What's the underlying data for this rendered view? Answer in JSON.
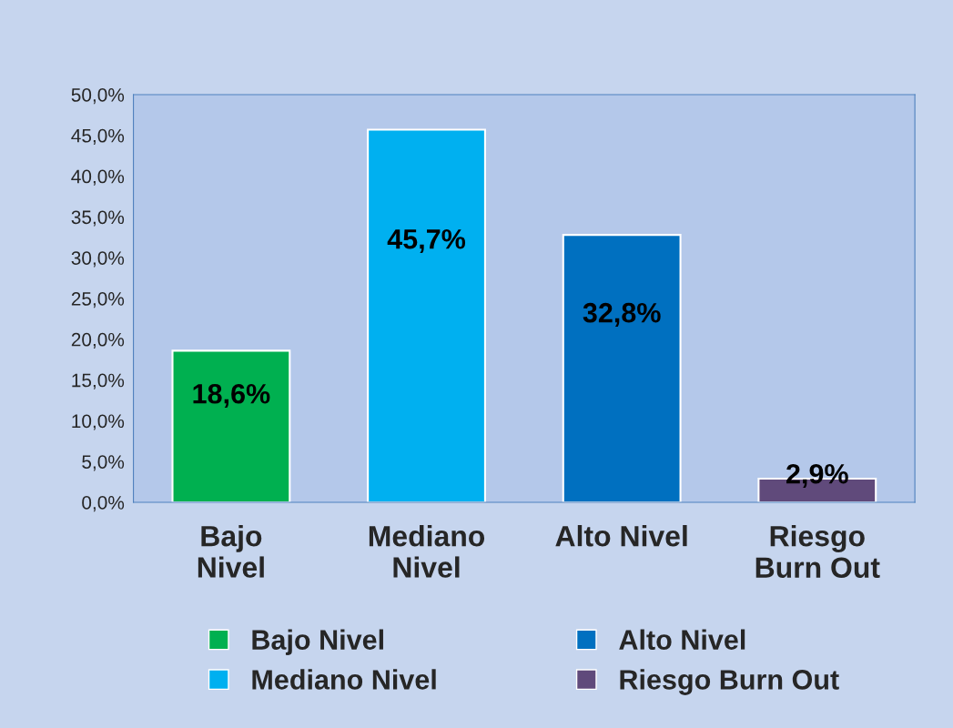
{
  "chart_data": {
    "type": "bar",
    "categories": [
      "Bajo\nNivel",
      "Mediano\nNivel",
      "Alto Nivel",
      "Riesgo\nBurn Out"
    ],
    "series": [
      {
        "name": "Bajo Nivel",
        "color": "#00b050",
        "values": [
          18.6,
          null,
          null,
          null
        ],
        "value_labels": [
          "18,6%",
          null,
          null,
          null
        ]
      },
      {
        "name": "Mediano Nivel",
        "color": "#00b0f0",
        "values": [
          null,
          45.7,
          null,
          null
        ],
        "value_labels": [
          null,
          "45,7%",
          null,
          null
        ]
      },
      {
        "name": "Alto Nivel",
        "color": "#0070c0",
        "values": [
          null,
          null,
          32.8,
          null
        ],
        "value_labels": [
          null,
          null,
          "32,8%",
          null
        ]
      },
      {
        "name": "Riesgo Burn Out",
        "color": "#604a7b",
        "values": [
          null,
          null,
          null,
          2.9
        ],
        "value_labels": [
          null,
          null,
          null,
          "2,9%"
        ]
      }
    ],
    "ylim": [
      0,
      50
    ],
    "yticks": [
      {
        "value": 0,
        "label": "0,0%"
      },
      {
        "value": 5,
        "label": "5,0%"
      },
      {
        "value": 10,
        "label": "10,0%"
      },
      {
        "value": 15,
        "label": "15,0%"
      },
      {
        "value": 20,
        "label": "20,0%"
      },
      {
        "value": 25,
        "label": "25,0%"
      },
      {
        "value": 30,
        "label": "30,0%"
      },
      {
        "value": 35,
        "label": "35,0%"
      },
      {
        "value": 40,
        "label": "40,0%"
      },
      {
        "value": 45,
        "label": "45,0%"
      },
      {
        "value": 50,
        "label": "50,0%"
      }
    ],
    "grid": false,
    "legend": "bottom"
  }
}
